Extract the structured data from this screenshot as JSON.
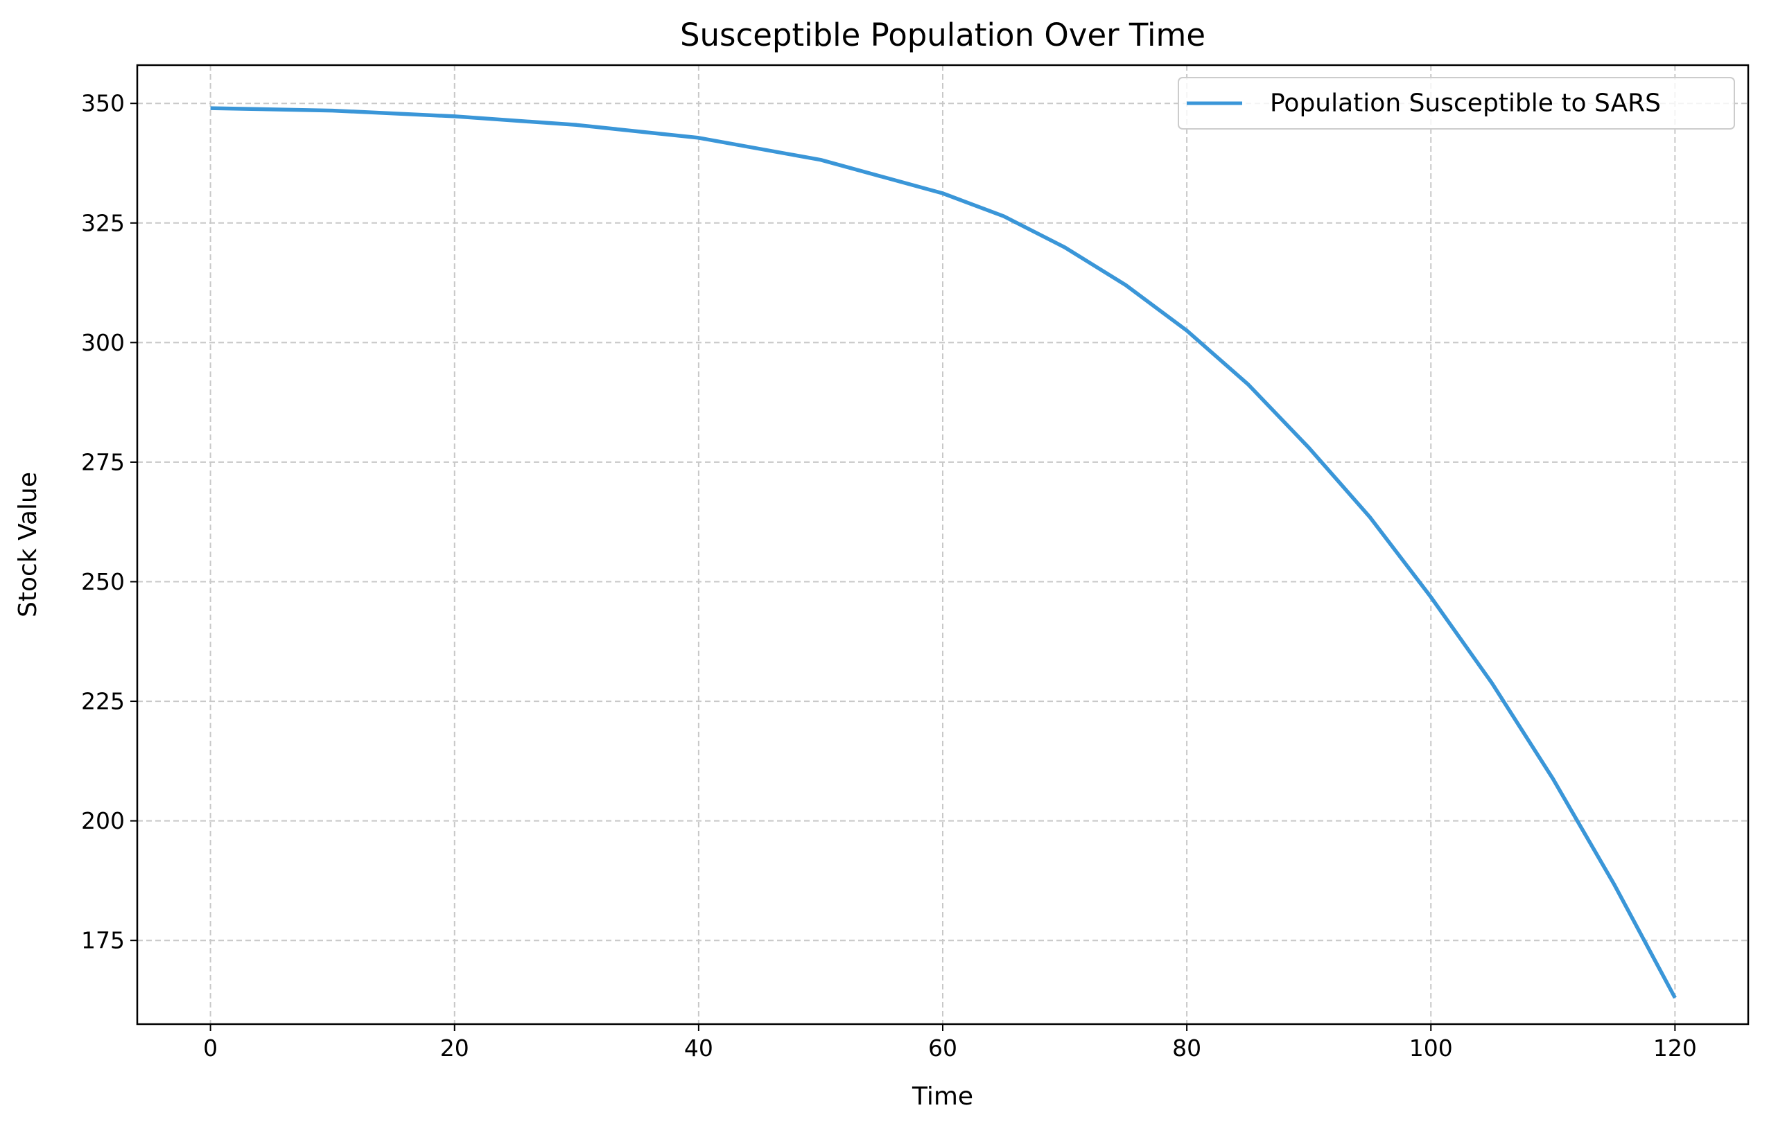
{
  "chart_data": {
    "type": "line",
    "title": "Susceptible Population Over Time",
    "xlabel": "Time",
    "ylabel": "Stock Value",
    "xlim": [
      -6,
      126
    ],
    "ylim": [
      157.5,
      358
    ],
    "xticks": [
      0,
      20,
      40,
      60,
      80,
      100,
      120
    ],
    "xtick_labels": [
      "0",
      "20",
      "40",
      "60",
      "80",
      "100",
      "120"
    ],
    "yticks": [
      175,
      200,
      225,
      250,
      275,
      300,
      325,
      350
    ],
    "ytick_labels": [
      "175",
      "200",
      "225",
      "250",
      "275",
      "300",
      "325",
      "350"
    ],
    "grid": true,
    "legend_position": "top-right",
    "series": [
      {
        "name": "Population Susceptible to SARS",
        "color": "#3a96d8",
        "x": [
          0,
          10,
          20,
          30,
          40,
          50,
          60,
          65,
          70,
          75,
          80,
          85,
          90,
          95,
          100,
          105,
          110,
          115,
          120
        ],
        "y": [
          349,
          348.5,
          347.3,
          345.5,
          342.8,
          338.2,
          331.2,
          326.4,
          319.9,
          312.0,
          302.5,
          291.3,
          278.0,
          263.5,
          246.8,
          228.8,
          208.8,
          186.8,
          163.0
        ]
      }
    ]
  }
}
